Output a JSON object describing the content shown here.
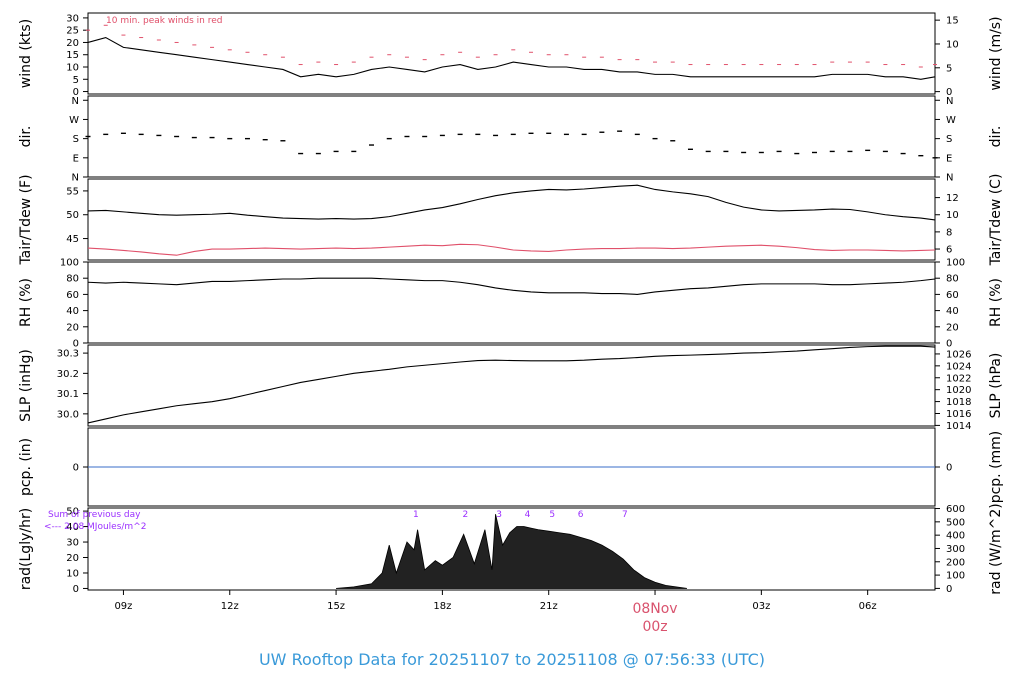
{
  "title": "UW Rooftop Data for 20251107  to  20251108 @ 07:56:33  (UTC)",
  "colors": {
    "line": "#000000",
    "peak": "#e0506a",
    "dewpoint": "#e0506a",
    "precip": "#3a6ec8",
    "annotation_purple": "#9b30ff",
    "title": "#3a9ad9",
    "date_red": "#d9536e"
  },
  "x_axis": {
    "ticks": [
      "09z",
      "12z",
      "15z",
      "18z",
      "21z",
      "00z",
      "03z",
      "06z"
    ],
    "tick_hours": [
      9,
      12,
      15,
      18,
      21,
      24,
      27,
      30
    ],
    "range_hours": [
      8.0,
      31.9
    ],
    "date_label_top": "08Nov",
    "date_label_bottom": "00z"
  },
  "chart_data": [
    {
      "type": "line",
      "id": "wind",
      "ylabel_left": "wind (kts)",
      "ylabel_right": "wind (m/s)",
      "left_ticks": [
        "0",
        "5",
        "10",
        "15",
        "20",
        "25",
        "30"
      ],
      "left_tick_values": [
        0,
        5,
        10,
        15,
        20,
        25,
        30
      ],
      "right_ticks": [
        "0",
        "5",
        "10",
        "15"
      ],
      "right_tick_values": [
        0,
        5,
        10,
        15
      ],
      "ylim": [
        -1,
        32
      ],
      "right_ylim": [
        -0.5,
        16.5
      ],
      "annotation": "10 min. peak winds in red",
      "series": [
        {
          "name": "",
          "x": [
            8.0,
            8.5,
            9.0,
            9.5,
            10.0,
            10.5,
            11.0,
            11.5,
            12.0,
            12.5,
            13.0,
            13.5,
            14.0,
            14.5,
            15.0,
            15.5,
            16.0,
            16.5,
            17.0,
            17.5,
            18.0,
            18.5,
            19.0,
            19.5,
            20.0,
            20.5,
            21.0,
            21.5,
            22.0,
            22.5,
            23.0,
            23.5,
            24.0,
            24.5,
            25.0,
            25.5,
            26.0,
            26.5,
            27.0,
            27.5,
            28.0,
            28.5,
            29.0,
            29.5,
            30.0,
            30.5,
            31.0,
            31.5,
            31.9
          ],
          "y": [
            20,
            22,
            18,
            17,
            16,
            15,
            14,
            13,
            12,
            11,
            10,
            9,
            6,
            7,
            6,
            7,
            9,
            10,
            9,
            8,
            10,
            11,
            9,
            10,
            12,
            11,
            10,
            10,
            9,
            9,
            8,
            8,
            7,
            7,
            6,
            6,
            6,
            6,
            6,
            6,
            6,
            6,
            7,
            7,
            7,
            6,
            6,
            5,
            6
          ]
        }
      ]
    },
    {
      "type": "scatter",
      "id": "dir",
      "ylabel_left": "dir.",
      "ylabel_right": "dir.",
      "left_ticks": [
        "N",
        "E",
        "S",
        "W",
        "N"
      ],
      "left_tick_values": [
        0,
        90,
        180,
        270,
        360
      ],
      "right_ticks": [
        "N",
        "E",
        "S",
        "W",
        "N"
      ],
      "right_tick_values": [
        0,
        90,
        180,
        270,
        360
      ],
      "ylim": [
        0,
        380
      ],
      "series": [
        {
          "name": "",
          "x": [
            8.0,
            8.5,
            9.0,
            9.5,
            10.0,
            10.5,
            11.0,
            11.5,
            12.0,
            12.5,
            13.0,
            13.5,
            14.0,
            14.5,
            15.0,
            15.5,
            16.0,
            16.5,
            17.0,
            17.5,
            18.0,
            18.5,
            19.0,
            19.5,
            20.0,
            20.5,
            21.0,
            21.5,
            22.0,
            22.5,
            23.0,
            23.5,
            24.0,
            24.5,
            25.0,
            25.5,
            26.0,
            26.5,
            27.0,
            27.5,
            28.0,
            28.5,
            29.0,
            29.5,
            30.0,
            30.5,
            31.0,
            31.5,
            31.9
          ],
          "y": [
            190,
            200,
            205,
            200,
            195,
            190,
            185,
            185,
            180,
            180,
            175,
            170,
            110,
            110,
            120,
            120,
            150,
            180,
            190,
            190,
            195,
            200,
            200,
            195,
            200,
            205,
            205,
            200,
            200,
            210,
            215,
            200,
            180,
            170,
            130,
            120,
            120,
            115,
            115,
            120,
            110,
            115,
            120,
            120,
            125,
            120,
            110,
            100,
            90
          ]
        }
      ]
    },
    {
      "type": "line",
      "id": "temp",
      "ylabel_left": "Tair/Tdew (F)",
      "ylabel_right": "Tair/Tdew (C)",
      "left_ticks": [
        "45",
        "50",
        "55"
      ],
      "left_tick_values": [
        45,
        50,
        55
      ],
      "right_ticks": [
        "6",
        "8",
        "10",
        "12"
      ],
      "right_tick_values": [
        6,
        8,
        10,
        12
      ],
      "ylim": [
        40.5,
        57.5
      ],
      "right_ylim": [
        4.72,
        14.17
      ],
      "series": [
        {
          "name": "",
          "x": [
            8.0,
            8.5,
            9.0,
            9.5,
            10.0,
            10.5,
            11.0,
            11.5,
            12.0,
            12.5,
            13.0,
            13.5,
            14.0,
            14.5,
            15.0,
            15.5,
            16.0,
            16.5,
            17.0,
            17.5,
            18.0,
            18.5,
            19.0,
            19.5,
            20.0,
            20.5,
            21.0,
            21.5,
            22.0,
            22.5,
            23.0,
            23.5,
            24.0,
            24.5,
            25.0,
            25.5,
            26.0,
            26.5,
            27.0,
            27.5,
            28.0,
            28.5,
            29.0,
            29.5,
            30.0,
            30.5,
            31.0,
            31.5,
            31.9
          ],
          "y": [
            50.8,
            50.9,
            50.6,
            50.3,
            50.0,
            49.9,
            50.0,
            50.1,
            50.3,
            49.9,
            49.6,
            49.3,
            49.2,
            49.1,
            49.2,
            49.1,
            49.2,
            49.6,
            50.3,
            51.0,
            51.5,
            52.3,
            53.2,
            54.0,
            54.6,
            55.0,
            55.3,
            55.2,
            55.4,
            55.7,
            56.0,
            56.2,
            55.3,
            54.8,
            54.4,
            53.8,
            52.6,
            51.6,
            51.0,
            50.8,
            50.9,
            51.0,
            51.2,
            51.1,
            50.6,
            50.0,
            49.6,
            49.3,
            48.9
          ]
        },
        {
          "name": "",
          "x": [
            8.0,
            8.5,
            9.0,
            9.5,
            10.0,
            10.5,
            11.0,
            11.5,
            12.0,
            12.5,
            13.0,
            13.5,
            14.0,
            14.5,
            15.0,
            15.5,
            16.0,
            16.5,
            17.0,
            17.5,
            18.0,
            18.5,
            19.0,
            19.5,
            20.0,
            20.5,
            21.0,
            21.5,
            22.0,
            22.5,
            23.0,
            23.5,
            24.0,
            24.5,
            25.0,
            25.5,
            26.0,
            26.5,
            27.0,
            27.5,
            28.0,
            28.5,
            29.0,
            29.5,
            30.0,
            30.5,
            31.0,
            31.5,
            31.9
          ],
          "y": [
            43.0,
            42.8,
            42.5,
            42.2,
            41.8,
            41.5,
            42.3,
            42.8,
            42.8,
            42.9,
            43.0,
            42.9,
            42.8,
            42.9,
            43.0,
            42.9,
            43.0,
            43.2,
            43.4,
            43.6,
            43.5,
            43.8,
            43.7,
            43.2,
            42.6,
            42.4,
            42.3,
            42.6,
            42.8,
            42.9,
            42.9,
            43.0,
            43.0,
            42.9,
            43.0,
            43.2,
            43.4,
            43.5,
            43.6,
            43.4,
            43.1,
            42.7,
            42.5,
            42.6,
            42.6,
            42.5,
            42.4,
            42.5,
            42.6
          ]
        }
      ]
    },
    {
      "type": "line",
      "id": "rh",
      "ylabel_left": "RH (%)",
      "ylabel_right": "RH (%)",
      "left_ticks": [
        "0",
        "20",
        "40",
        "60",
        "80",
        "100"
      ],
      "left_tick_values": [
        0,
        20,
        40,
        60,
        80,
        100
      ],
      "right_ticks": [
        "0",
        "20",
        "40",
        "60",
        "80",
        "100"
      ],
      "right_tick_values": [
        0,
        20,
        40,
        60,
        80,
        100
      ],
      "ylim": [
        0,
        100
      ],
      "series": [
        {
          "name": "",
          "x": [
            8.0,
            8.5,
            9.0,
            9.5,
            10.0,
            10.5,
            11.0,
            11.5,
            12.0,
            12.5,
            13.0,
            13.5,
            14.0,
            14.5,
            15.0,
            15.5,
            16.0,
            16.5,
            17.0,
            17.5,
            18.0,
            18.5,
            19.0,
            19.5,
            20.0,
            20.5,
            21.0,
            21.5,
            22.0,
            22.5,
            23.0,
            23.5,
            24.0,
            24.5,
            25.0,
            25.5,
            26.0,
            26.5,
            27.0,
            27.5,
            28.0,
            28.5,
            29.0,
            29.5,
            30.0,
            30.5,
            31.0,
            31.5,
            31.9
          ],
          "y": [
            75,
            74,
            75,
            74,
            73,
            72,
            74,
            76,
            76,
            77,
            78,
            79,
            79,
            80,
            80,
            80,
            80,
            79,
            78,
            77,
            77,
            75,
            72,
            68,
            65,
            63,
            62,
            62,
            62,
            61,
            61,
            60,
            63,
            65,
            67,
            68,
            70,
            72,
            73,
            73,
            73,
            73,
            72,
            72,
            73,
            74,
            75,
            77,
            79
          ]
        }
      ]
    },
    {
      "type": "line",
      "id": "slp",
      "ylabel_left": "SLP (inHg)",
      "ylabel_right": "SLP (hPa)",
      "left_ticks": [
        "30.0",
        "30.1",
        "30.2",
        "30.3"
      ],
      "left_tick_values": [
        30.0,
        30.1,
        30.2,
        30.3
      ],
      "right_ticks": [
        "1014",
        "1016",
        "1018",
        "1020",
        "1022",
        "1024",
        "1026"
      ],
      "right_tick_values": [
        1014,
        1016,
        1018,
        1020,
        1022,
        1024,
        1026
      ],
      "ylim": [
        29.94,
        30.34
      ],
      "right_ylim": [
        1013.9,
        1027.5
      ],
      "series": [
        {
          "name": "",
          "x": [
            8.0,
            8.5,
            9.0,
            9.5,
            10.0,
            10.5,
            11.0,
            11.5,
            12.0,
            12.5,
            13.0,
            13.5,
            14.0,
            14.5,
            15.0,
            15.5,
            16.0,
            16.5,
            17.0,
            17.5,
            18.0,
            18.5,
            19.0,
            19.5,
            20.0,
            20.5,
            21.0,
            21.5,
            22.0,
            22.5,
            23.0,
            23.5,
            24.0,
            24.5,
            25.0,
            25.5,
            26.0,
            26.5,
            27.0,
            27.5,
            28.0,
            28.5,
            29.0,
            29.5,
            30.0,
            30.5,
            31.0,
            31.5,
            31.9
          ],
          "y": [
            29.955,
            29.975,
            29.995,
            30.01,
            30.025,
            30.04,
            30.05,
            30.06,
            30.075,
            30.095,
            30.115,
            30.135,
            30.155,
            30.17,
            30.185,
            30.2,
            30.21,
            30.22,
            30.232,
            30.24,
            30.248,
            30.256,
            30.263,
            30.265,
            30.263,
            30.262,
            30.262,
            30.262,
            30.265,
            30.27,
            30.273,
            30.278,
            30.284,
            30.288,
            30.29,
            30.293,
            30.296,
            30.3,
            30.302,
            30.306,
            30.31,
            30.316,
            30.322,
            30.328,
            30.332,
            30.334,
            30.334,
            30.334,
            30.33
          ]
        }
      ]
    },
    {
      "type": "line",
      "id": "pcp",
      "ylabel_left": "pcp. (in)",
      "ylabel_right": "pcp. (mm)",
      "left_ticks": [
        "0"
      ],
      "left_tick_values": [
        0
      ],
      "right_ticks": [
        "0"
      ],
      "right_tick_values": [
        0
      ],
      "ylim": [
        -0.5,
        0.5
      ],
      "series": [
        {
          "name": "",
          "x": [
            8.0,
            31.9
          ],
          "y": [
            0,
            0
          ]
        }
      ]
    },
    {
      "type": "area",
      "id": "rad",
      "ylabel_left": "rad(Lgly/hr)",
      "ylabel_right": "rad (W/m^2)",
      "left_ticks": [
        "0",
        "10",
        "20",
        "30",
        "40",
        "50"
      ],
      "left_tick_values": [
        0,
        10,
        20,
        30,
        40,
        50
      ],
      "right_ticks": [
        "0",
        "100",
        "200",
        "300",
        "400",
        "500",
        "600"
      ],
      "right_tick_values": [
        0,
        100,
        200,
        300,
        400,
        500,
        600
      ],
      "ylim": [
        -1,
        52
      ],
      "right_ylim": [
        -12,
        604
      ],
      "annotation_lines": [
        "Sum of previous day",
        "<--- 2.08 MJoules/m^2"
      ],
      "marker_labels": [
        "1",
        "2",
        "3",
        "4",
        "5",
        "6",
        "7"
      ],
      "marker_hours": [
        17.25,
        18.65,
        19.6,
        20.4,
        21.1,
        21.9,
        23.15
      ],
      "series": [
        {
          "name": "",
          "x": [
            15.0,
            15.5,
            16.0,
            16.3,
            16.5,
            16.7,
            17.0,
            17.2,
            17.3,
            17.5,
            17.8,
            18.0,
            18.3,
            18.6,
            18.9,
            19.2,
            19.4,
            19.5,
            19.7,
            19.9,
            20.1,
            20.3,
            20.5,
            20.7,
            21.0,
            21.3,
            21.6,
            21.9,
            22.2,
            22.5,
            22.8,
            23.1,
            23.4,
            23.7,
            24.0,
            24.3,
            24.6,
            24.9
          ],
          "y": [
            0,
            1,
            3,
            10,
            28,
            10,
            30,
            25,
            38,
            12,
            18,
            15,
            20,
            35,
            16,
            38,
            12,
            48,
            28,
            36,
            40,
            40,
            39,
            38,
            37,
            36,
            35,
            33,
            31,
            28,
            24,
            19,
            12,
            7,
            4,
            2,
            1,
            0
          ]
        }
      ]
    }
  ]
}
